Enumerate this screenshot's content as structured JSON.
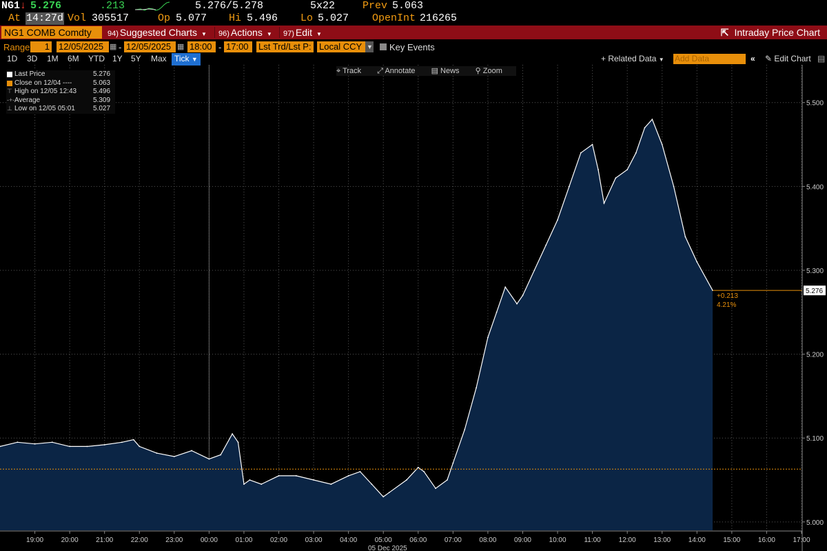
{
  "quote": {
    "ticker": "NG1",
    "direction_icon": "down-arrow-icon",
    "last": "5.276",
    "change": ".213",
    "bid_ask": "5.276/5.278",
    "size": "5x22",
    "prev_label": "Prev",
    "prev": "5.063",
    "at_label": "At",
    "time": "14:27d",
    "vol_label": "Vol",
    "vol": "305517",
    "op_label": "Op",
    "op": "5.077",
    "hi_label": "Hi",
    "hi": "5.496",
    "lo_label": "Lo",
    "lo": "5.027",
    "oi_label": "OpenInt",
    "oi": "216265"
  },
  "toolbar": {
    "security": "NG1 COMB Comdty",
    "suggested_num": "94)",
    "suggested": "Suggested Charts",
    "actions_num": "96)",
    "actions": "Actions",
    "edit_num": "97)",
    "edit": "Edit",
    "title": "Intraday Price Chart"
  },
  "range": {
    "label": "Range",
    "count": "1",
    "start_date": "12/05/2025",
    "end_date": "12/05/2025",
    "start_time": "18:00",
    "end_time": "17:00",
    "dash": "-",
    "market": "Lst Trd/Lst P:",
    "currency": "Local CCY",
    "key_events": "Key Events"
  },
  "periods": [
    "1D",
    "3D",
    "1M",
    "6M",
    "YTD",
    "1Y",
    "5Y",
    "Max"
  ],
  "period_active": "Tick",
  "related_data": "Related Data",
  "add_data_placeholder": "Add Data",
  "edit_chart": "Edit Chart",
  "chart_tools": [
    "Track",
    "Annotate",
    "News",
    "Zoom"
  ],
  "legend": [
    {
      "label": "Last Price",
      "value": "5.276",
      "color": "#ffffff"
    },
    {
      "label": "Close on 12/04 ---- ",
      "value": "5.063",
      "color": "#e88f0a"
    },
    {
      "label": "High on 12/05 12:43",
      "value": "5.496",
      "color": "#9a9a9a"
    },
    {
      "label": "Average",
      "value": "5.309",
      "color": "#9a9a9a"
    },
    {
      "label": "Low on 12/05 05:01",
      "value": "5.027",
      "color": "#9a9a9a"
    }
  ],
  "date_label": "05 Dec 2025",
  "colors": {
    "accent": "#e88f0a",
    "toolbar": "#8e0d16",
    "area_fill": "#0b2545",
    "price_line": "#ffffff",
    "close_line": "#e88f0a"
  },
  "chart_data": {
    "type": "area",
    "ylim": [
      4.99,
      5.545
    ],
    "y_ticks": [
      "5.000",
      "5.100",
      "5.200",
      "5.300",
      "5.400",
      "5.500"
    ],
    "x_ticks": [
      "19:00",
      "20:00",
      "21:00",
      "22:00",
      "23:00",
      "00:00",
      "01:00",
      "02:00",
      "03:00",
      "04:00",
      "05:00",
      "06:00",
      "07:00",
      "08:00",
      "09:00",
      "10:00",
      "11:00",
      "12:00",
      "13:00",
      "14:00",
      "15:00",
      "16:00",
      "17:00"
    ],
    "x_start": "18:00",
    "x_end": "17:00",
    "prev_close": 5.063,
    "last": "5.276",
    "last_change": "+0.213",
    "last_change_pct": "4.21%",
    "series": [
      {
        "name": "Last Price",
        "x": [
          "18:00",
          "18:30",
          "19:00",
          "19:30",
          "20:00",
          "20:30",
          "21:00",
          "21:30",
          "21:50",
          "22:00",
          "22:30",
          "23:00",
          "23:30",
          "00:00",
          "00:20",
          "00:40",
          "00:50",
          "01:00",
          "01:10",
          "01:30",
          "02:00",
          "02:30",
          "03:00",
          "03:30",
          "04:00",
          "04:20",
          "04:40",
          "05:00",
          "05:10",
          "05:40",
          "06:00",
          "06:10",
          "06:30",
          "06:50",
          "07:00",
          "07:20",
          "07:40",
          "08:00",
          "08:15",
          "08:30",
          "08:50",
          "09:00",
          "09:20",
          "09:40",
          "10:00",
          "10:20",
          "10:40",
          "11:00",
          "11:10",
          "11:20",
          "11:40",
          "12:00",
          "12:15",
          "12:30",
          "12:43",
          "13:00",
          "13:20",
          "13:40",
          "14:00",
          "14:27"
        ],
        "y": [
          5.09,
          5.095,
          5.093,
          5.095,
          5.09,
          5.09,
          5.092,
          5.095,
          5.098,
          5.09,
          5.082,
          5.078,
          5.085,
          5.075,
          5.08,
          5.105,
          5.095,
          5.045,
          5.05,
          5.045,
          5.055,
          5.055,
          5.05,
          5.045,
          5.055,
          5.06,
          5.045,
          5.03,
          5.035,
          5.05,
          5.065,
          5.06,
          5.04,
          5.05,
          5.07,
          5.11,
          5.16,
          5.22,
          5.25,
          5.28,
          5.26,
          5.27,
          5.3,
          5.33,
          5.36,
          5.4,
          5.44,
          5.45,
          5.42,
          5.38,
          5.41,
          5.42,
          5.44,
          5.47,
          5.48,
          5.45,
          5.4,
          5.34,
          5.31,
          5.276
        ]
      }
    ]
  }
}
